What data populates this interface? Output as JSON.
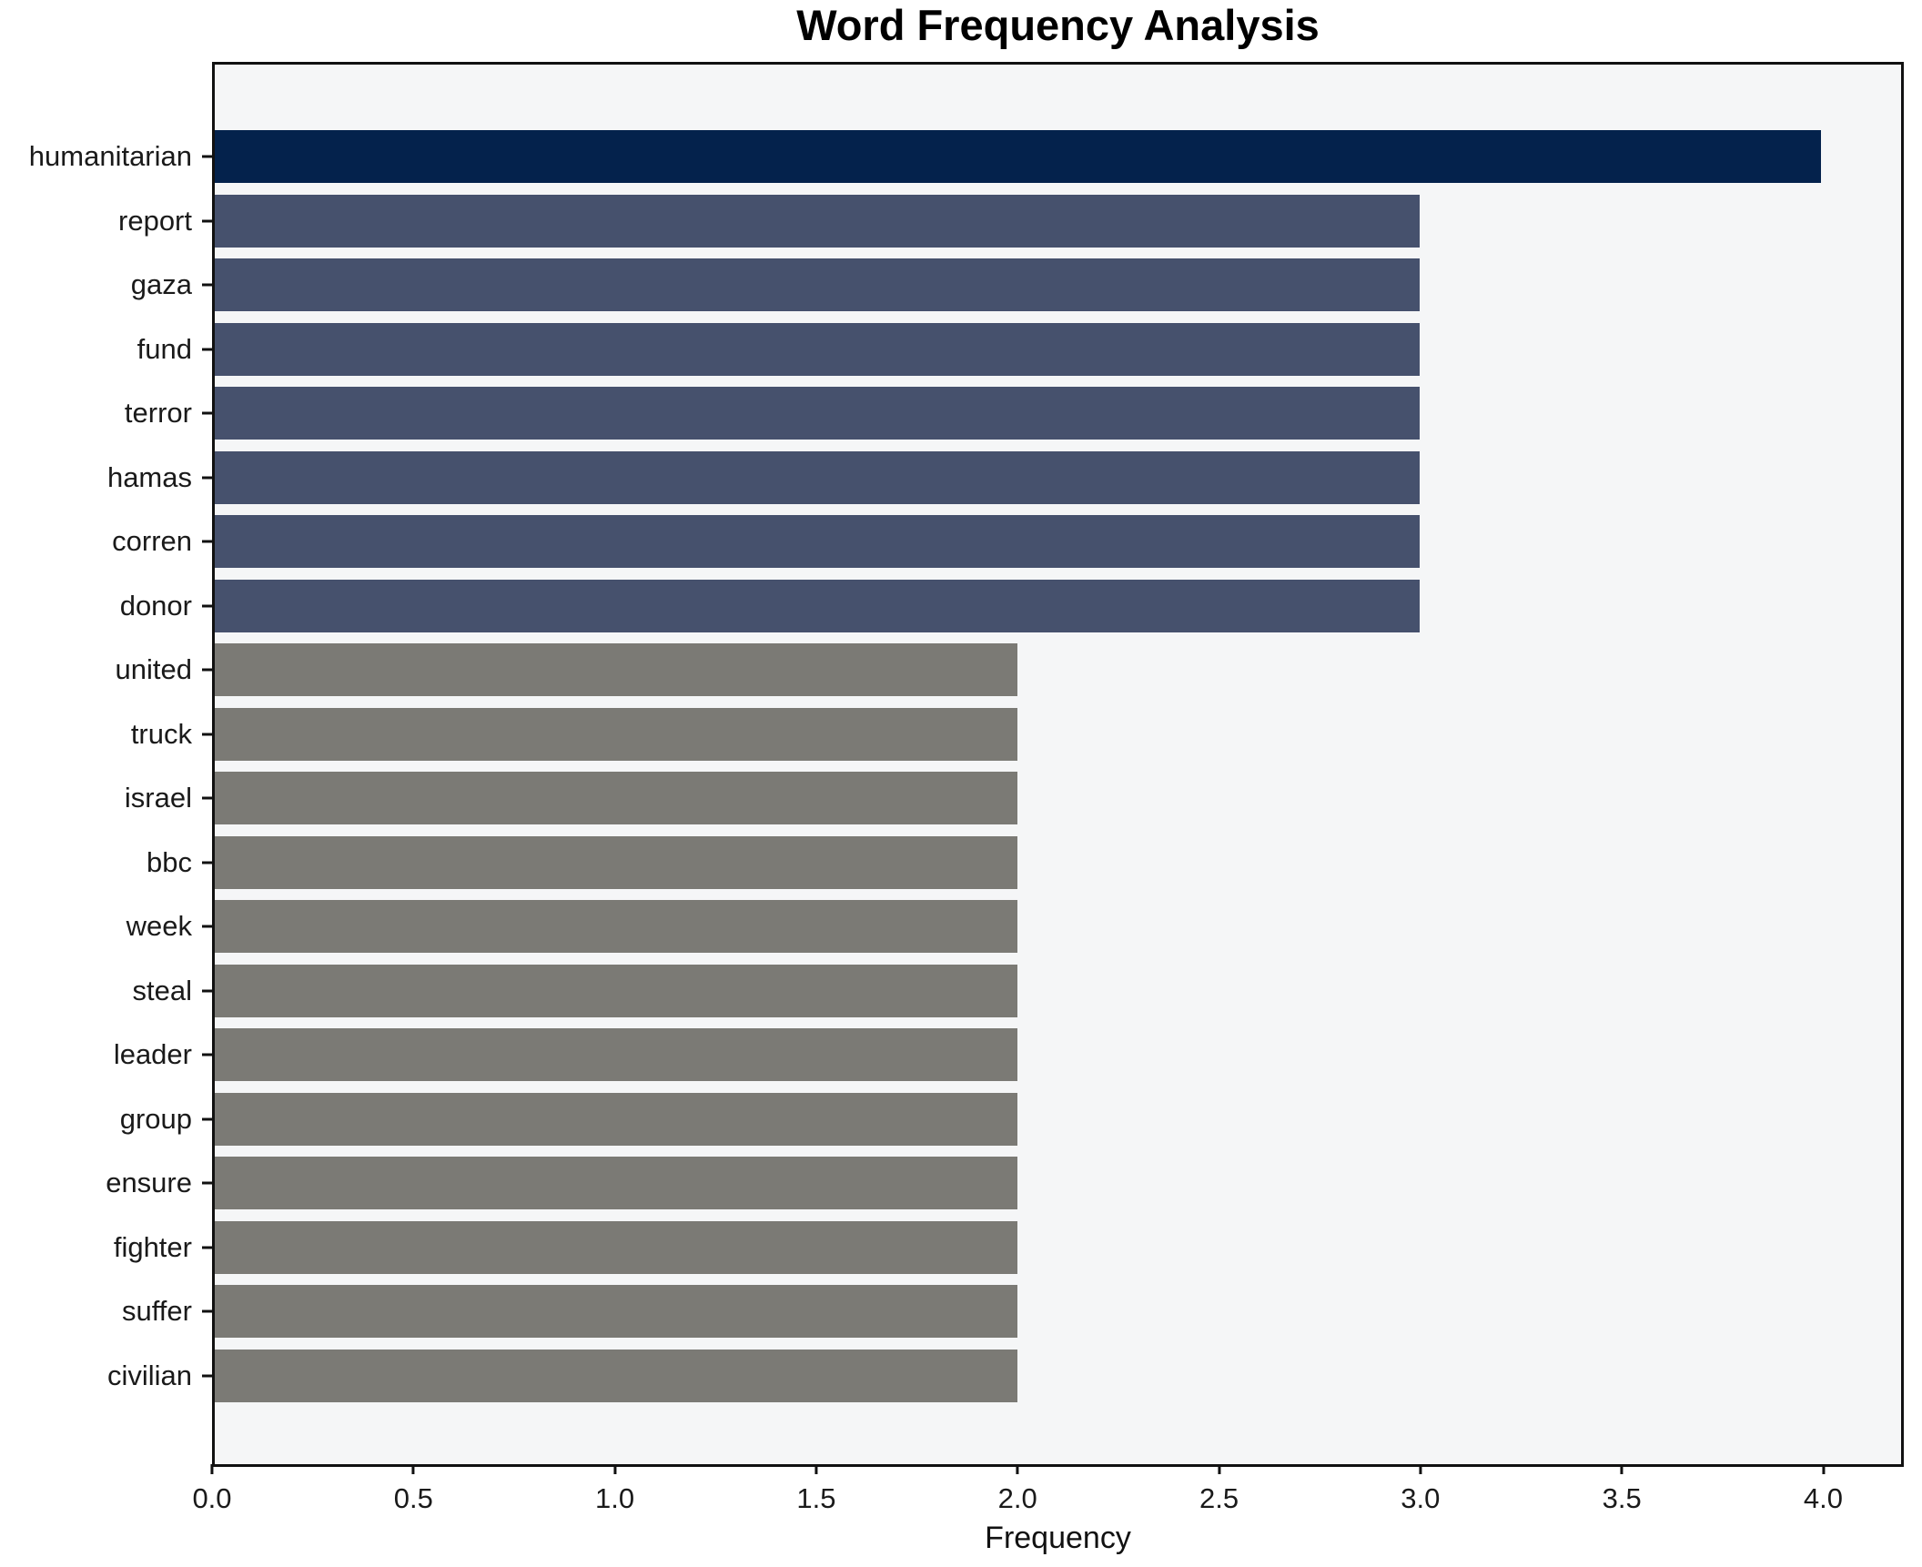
{
  "chart_data": {
    "type": "bar",
    "orientation": "horizontal",
    "title": "Word Frequency Analysis",
    "xlabel": "Frequency",
    "ylabel": "",
    "categories": [
      "humanitarian",
      "report",
      "gaza",
      "fund",
      "terror",
      "hamas",
      "corren",
      "donor",
      "united",
      "truck",
      "israel",
      "bbc",
      "week",
      "steal",
      "leader",
      "group",
      "ensure",
      "fighter",
      "suffer",
      "civilian"
    ],
    "values": [
      4,
      3,
      3,
      3,
      3,
      3,
      3,
      3,
      2,
      2,
      2,
      2,
      2,
      2,
      2,
      2,
      2,
      2,
      2,
      2
    ],
    "bar_colors": [
      "#04224c",
      "#46516d",
      "#46516d",
      "#46516d",
      "#46516d",
      "#46516d",
      "#46516d",
      "#46516d",
      "#7b7a75",
      "#7b7a75",
      "#7b7a75",
      "#7b7a75",
      "#7b7a75",
      "#7b7a75",
      "#7b7a75",
      "#7b7a75",
      "#7b7a75",
      "#7b7a75",
      "#7b7a75",
      "#7b7a75"
    ],
    "xlim": [
      0,
      4.2
    ],
    "xticks": [
      0.0,
      0.5,
      1.0,
      1.5,
      2.0,
      2.5,
      3.0,
      3.5,
      4.0
    ],
    "xtick_labels": [
      "0.0",
      "0.5",
      "1.0",
      "1.5",
      "2.0",
      "2.5",
      "3.0",
      "3.5",
      "4.0"
    ],
    "grid": false,
    "legend": null,
    "colors": {
      "bar_value_4": "#04224c",
      "bar_value_3": "#46516d",
      "bar_value_2": "#7b7a75",
      "plot_background": "#f5f6f7",
      "figure_background": "#ffffff",
      "spine": "#111111",
      "text": "#1a1a1a"
    }
  }
}
